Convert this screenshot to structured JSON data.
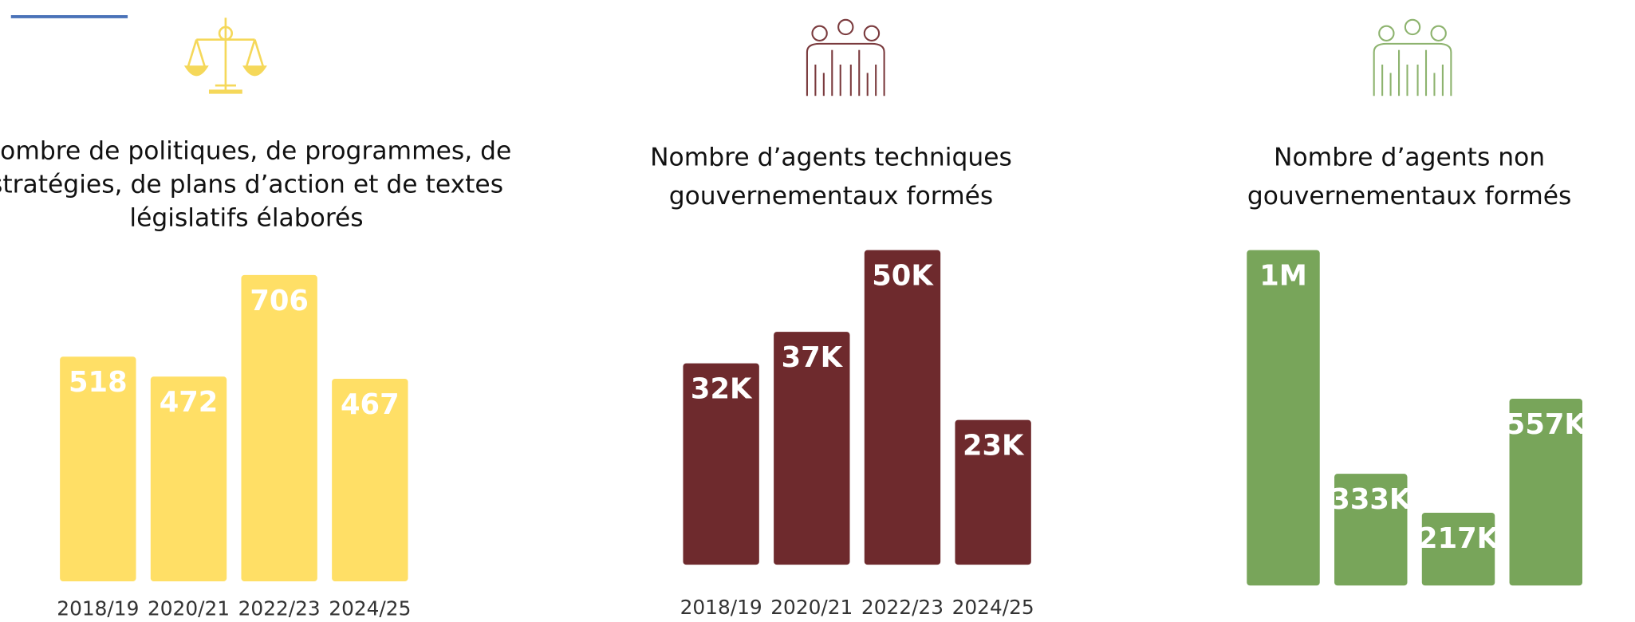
{
  "chart_data": [
    {
      "type": "bar",
      "title": [
        "Nombre de politiques, de programmes, de",
        "stratégies, de plans d’action et de textes",
        "législatifs élaborés"
      ],
      "categories": [
        "2018/19",
        "2020/21",
        "2022/23",
        "2024/25"
      ],
      "values": [
        518,
        472,
        706,
        467
      ],
      "color": "#FFDF66"
    },
    {
      "type": "bar",
      "title": [
        "Nombre d’agents techniques",
        "gouvernementaux formés"
      ],
      "categories": [
        "2018/19",
        "2020/21",
        "2022/23",
        "2024/25"
      ],
      "values": [
        32000,
        37000,
        50000,
        23000
      ],
      "value_labels": [
        "32K",
        "37K",
        "50K",
        "23K"
      ],
      "color": "#6E2A2D"
    },
    {
      "type": "bar",
      "title": [
        "Nombre d’agents non",
        "gouvernementaux formés"
      ],
      "categories": [
        null,
        null,
        null,
        null
      ],
      "values": [
        1000000,
        333000,
        217000,
        557000
      ],
      "value_labels": [
        "1M",
        "333K",
        "217K",
        "557K"
      ],
      "color": "#78A55A"
    }
  ]
}
